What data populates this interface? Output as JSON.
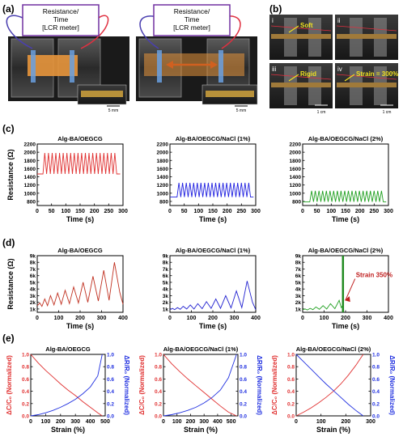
{
  "panel_labels": {
    "a": "(a)",
    "b": "(b)",
    "c": "(c)",
    "d": "(d)",
    "e": "(e)"
  },
  "panel_a": {
    "box_left": "Resistance/\nTime\n[LCR meter]",
    "box_right": "Resistance/\nTime\n[LCR meter]",
    "scale_left": "5 mm",
    "scale_right": "5 mm",
    "colors": {
      "box_border": "#7030a0",
      "wire_left": "#4a3fb0",
      "wire_right": "#e03040",
      "arrow": "#d06020"
    }
  },
  "panel_b": {
    "tiles": [
      {
        "num": "i",
        "tag": "Soft"
      },
      {
        "num": "ii",
        "tag": ""
      },
      {
        "num": "iii",
        "tag": "Rigid"
      },
      {
        "num": "iv",
        "tag": "Strain = 300%"
      }
    ],
    "scale_bar": "1 cm",
    "tag_color": "#f0e020"
  },
  "chart_data": [
    {
      "id": "c1",
      "type": "line",
      "title": "Alg-BA/OEGCG",
      "xlabel": "Time (s)",
      "ylabel": "Resistance (Ω)",
      "xlim": [
        0,
        300
      ],
      "ylim": [
        700,
        2200
      ],
      "xticks": [
        "0",
        "50",
        "100",
        "150",
        "200",
        "250",
        "300"
      ],
      "yticks": [
        "800",
        "1000",
        "1200",
        "1400",
        "1600",
        "1800",
        "2000",
        "2200"
      ],
      "color": "#e03030",
      "wave": {
        "start": 20,
        "end": 278,
        "cycles": 20,
        "base": 1470,
        "peak": 1980,
        "end_x": 290
      }
    },
    {
      "id": "c2",
      "type": "line",
      "title": "Alg-BA/OEGCG/NaCl (1%)",
      "xlabel": "Time (s)",
      "ylabel": "",
      "xlim": [
        0,
        300
      ],
      "ylim": [
        700,
        2200
      ],
      "xticks": [
        "0",
        "50",
        "100",
        "150",
        "200",
        "250",
        "300"
      ],
      "yticks": [
        "800",
        "1000",
        "1200",
        "1400",
        "1600",
        "1800",
        "2000",
        "2200"
      ],
      "color": "#2020e0",
      "wave": {
        "start": 25,
        "end": 282,
        "cycles": 20,
        "base": 905,
        "peak": 1255,
        "end_x": 292
      }
    },
    {
      "id": "c3",
      "type": "line",
      "title": "Alg-BA/OEGCG/NaCl (2%)",
      "xlabel": "Time (s)",
      "ylabel": "",
      "xlim": [
        0,
        300
      ],
      "ylim": [
        700,
        2200
      ],
      "xticks": [
        "0",
        "50",
        "100",
        "150",
        "200",
        "250",
        "300"
      ],
      "yticks": [
        "800",
        "1000",
        "1200",
        "1400",
        "1600",
        "1800",
        "2000",
        "2200"
      ],
      "color": "#20a020",
      "wave": {
        "start": 25,
        "end": 282,
        "cycles": 20,
        "base": 790,
        "peak": 1060,
        "end_x": 292
      }
    },
    {
      "id": "d1",
      "type": "line",
      "title": "Alg-BA/OEGCG",
      "xlabel": "Time (s)",
      "ylabel": "Resistance (Ω)",
      "xlim": [
        0,
        400
      ],
      "ylim": [
        500,
        9000
      ],
      "xticks": [
        "0",
        "100",
        "200",
        "300",
        "400"
      ],
      "yticks": [
        "1k",
        "2k",
        "3k",
        "4k",
        "5k",
        "6k",
        "7k",
        "8k",
        "9k"
      ],
      "color": "#c03020",
      "x": [
        0,
        12,
        22,
        35,
        48,
        62,
        78,
        95,
        112,
        130,
        150,
        170,
        192,
        214,
        236,
        260,
        285,
        310,
        335,
        360,
        385,
        400
      ],
      "y": [
        1500,
        1900,
        1400,
        2500,
        1500,
        3000,
        1600,
        3400,
        1700,
        3800,
        1800,
        4300,
        1900,
        5000,
        2000,
        5900,
        2200,
        6800,
        2300,
        8000,
        3500,
        1700
      ]
    },
    {
      "id": "d2",
      "type": "line",
      "title": "Alg-BA/OEGCG/NaCl (1%)",
      "xlabel": "Time (s)",
      "ylabel": "",
      "xlim": [
        0,
        400
      ],
      "ylim": [
        500,
        9000
      ],
      "xticks": [
        "0",
        "100",
        "200",
        "300",
        "400"
      ],
      "yticks": [
        "1k",
        "2k",
        "3k",
        "4k",
        "5k",
        "6k",
        "7k",
        "8k",
        "9k"
      ],
      "color": "#2020d0",
      "x": [
        0,
        12,
        22,
        35,
        48,
        62,
        78,
        95,
        112,
        130,
        150,
        170,
        192,
        214,
        236,
        260,
        285,
        310,
        335,
        360,
        385,
        400
      ],
      "y": [
        900,
        1100,
        900,
        1200,
        950,
        1400,
        1000,
        1600,
        1000,
        1800,
        1050,
        2100,
        1100,
        2500,
        1100,
        3000,
        1150,
        3700,
        1200,
        5200,
        2000,
        900
      ]
    },
    {
      "id": "d3",
      "type": "line",
      "title": "Alg-BA/OEGCG/NaCl (2%)",
      "xlabel": "Time (s)",
      "ylabel": "",
      "xlim": [
        0,
        400
      ],
      "ylim": [
        500,
        9000
      ],
      "xticks": [
        "0",
        "100",
        "200",
        "300",
        "400"
      ],
      "yticks": [
        "1k",
        "2k",
        "3k",
        "4k",
        "5k",
        "6k",
        "7k",
        "8k",
        "9k"
      ],
      "color": "#20a020",
      "x": [
        0,
        12,
        22,
        35,
        48,
        62,
        78,
        95,
        112,
        130,
        150,
        170,
        180,
        186
      ],
      "y": [
        900,
        1000,
        850,
        1100,
        900,
        1300,
        950,
        1500,
        1000,
        1800,
        1050,
        2300,
        1200,
        1500
      ],
      "cut_x": 188,
      "annotation": "Strain 350%",
      "annotation_color": "#c02020"
    },
    {
      "id": "e1",
      "type": "line",
      "title": "Alg-BA/OEGCG",
      "xlabel": "Strain (%)",
      "ylabel_left": "ΔC/C₀ (Normalized)",
      "ylabel_right": "ΔR/R₀ (Normalized)",
      "xlim": [
        0,
        500
      ],
      "ylim": [
        0,
        1.0
      ],
      "xticks": [
        "0",
        "100",
        "200",
        "300",
        "400",
        "500"
      ],
      "yticks": [
        "0.0",
        "0.2",
        "0.4",
        "0.6",
        "0.8",
        "1.0"
      ],
      "series": [
        {
          "color": "#e03030",
          "x": [
            0,
            50,
            100,
            150,
            200,
            250,
            300,
            350,
            400,
            450,
            480
          ],
          "y": [
            1.0,
            0.86,
            0.74,
            0.63,
            0.52,
            0.42,
            0.33,
            0.23,
            0.14,
            0.05,
            0.0
          ]
        },
        {
          "color": "#2030e0",
          "x": [
            0,
            50,
            100,
            150,
            200,
            250,
            300,
            350,
            400,
            450,
            480
          ],
          "y": [
            0.0,
            0.02,
            0.05,
            0.09,
            0.14,
            0.2,
            0.27,
            0.36,
            0.47,
            0.65,
            1.0
          ]
        }
      ]
    },
    {
      "id": "e2",
      "type": "line",
      "title": "Alg-BA/OEGCG/NaCl (1%)",
      "xlabel": "Strain (%)",
      "ylabel_left": "ΔC/C₀ (Normalized)",
      "ylabel_right": "ΔR/R₀ (Normalized)",
      "xlim": [
        0,
        550
      ],
      "ylim": [
        0,
        1.0
      ],
      "xticks": [
        "0",
        "100",
        "200",
        "300",
        "400",
        "500"
      ],
      "yticks": [
        "0.0",
        "0.2",
        "0.4",
        "0.6",
        "0.8",
        "1.0"
      ],
      "series": [
        {
          "color": "#e03030",
          "x": [
            0,
            60,
            120,
            180,
            240,
            300,
            360,
            420,
            480,
            540
          ],
          "y": [
            1.0,
            0.85,
            0.72,
            0.6,
            0.49,
            0.38,
            0.27,
            0.16,
            0.06,
            0.0
          ]
        },
        {
          "color": "#2030e0",
          "x": [
            0,
            60,
            120,
            180,
            240,
            300,
            360,
            420,
            480,
            540
          ],
          "y": [
            0.0,
            0.02,
            0.05,
            0.09,
            0.14,
            0.21,
            0.3,
            0.42,
            0.62,
            1.0
          ]
        }
      ]
    },
    {
      "id": "e3",
      "type": "line",
      "title": "Alg-BA/OEGCG/NaCl (2%)",
      "xlabel": "Strain (%)",
      "ylabel_left": "ΔC/C₀ (Normalized)",
      "ylabel_right": "ΔR/R₀ (Normalized)",
      "xlim": [
        0,
        300
      ],
      "ylim": [
        0,
        1.0
      ],
      "xticks": [
        "0",
        "100",
        "200",
        "300"
      ],
      "yticks": [
        "0.0",
        "0.2",
        "0.4",
        "0.6",
        "0.8",
        "1.0"
      ],
      "series": [
        {
          "color": "#e03030",
          "x": [
            0,
            30,
            60,
            90,
            120,
            150,
            180,
            210,
            240,
            270
          ],
          "y": [
            0.0,
            0.06,
            0.13,
            0.21,
            0.3,
            0.4,
            0.52,
            0.66,
            0.82,
            1.0
          ]
        },
        {
          "color": "#2030e0",
          "x": [
            0,
            30,
            60,
            90,
            120,
            150,
            180,
            210,
            240,
            270
          ],
          "y": [
            1.0,
            0.88,
            0.76,
            0.64,
            0.52,
            0.41,
            0.3,
            0.19,
            0.09,
            0.0
          ]
        }
      ]
    }
  ]
}
